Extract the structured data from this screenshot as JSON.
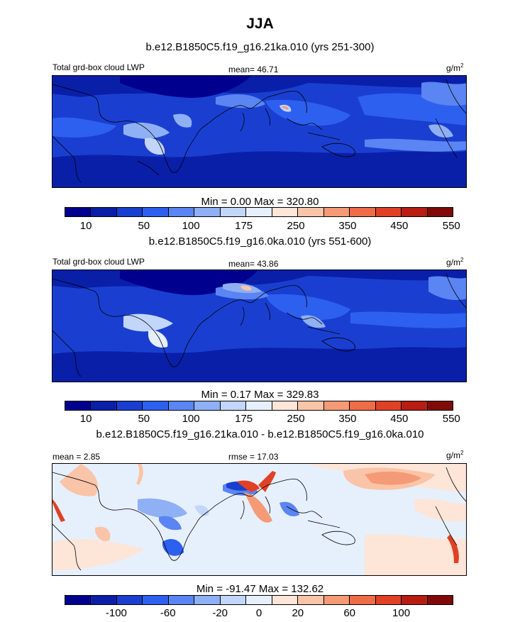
{
  "title": "JJA",
  "panels": [
    {
      "name": "b.e12.B1850C5.f19_g16.21ka.010 (yrs 251-300)",
      "left_label": "Total grd-box cloud LWP",
      "center_label": "mean=  46.71",
      "unit": "g/m",
      "unit_sup": "2",
      "minmax": "Min =   0.00 Max = 320.80",
      "colorbar_labels": [
        "10",
        "50",
        "100",
        "175",
        "250",
        "350",
        "450",
        "550"
      ]
    },
    {
      "name": "b.e12.B1850C5.f19_g16.0ka.010 (yrs 551-600)",
      "left_label": "Total grd-box cloud LWP",
      "center_label": "mean=  43.86",
      "unit": "g/m",
      "unit_sup": "2",
      "minmax": "Min =   0.17 Max = 329.83",
      "colorbar_labels": [
        "10",
        "50",
        "100",
        "175",
        "250",
        "350",
        "450",
        "550"
      ]
    },
    {
      "name": "b.e12.B1850C5.f19_g16.21ka.010 - b.e12.B1850C5.f19_g16.0ka.010",
      "left_label": "mean =   2.85",
      "center_label": "rmse =  17.03",
      "unit": "g/m",
      "unit_sup": "2",
      "minmax": "Min = -91.47 Max = 132.62",
      "colorbar_labels": [
        "-100",
        "-60",
        "-20",
        "0",
        "20",
        "60",
        "100"
      ]
    }
  ],
  "colors": {
    "scale": [
      "#00008f",
      "#0a1fa8",
      "#1a3fd0",
      "#2e60ef",
      "#5a85f2",
      "#8fb0f5",
      "#c2d6fa",
      "#e6f0fd",
      "#fde5d8",
      "#fac4a8",
      "#f59a76",
      "#ee6d48",
      "#e04125",
      "#b81c12",
      "#800a08"
    ],
    "diff_scale": [
      "#00008f",
      "#0a1fa8",
      "#1a3fd0",
      "#2e60ef",
      "#5a85f2",
      "#8fb0f5",
      "#c2d6fa",
      "#e6f0fd",
      "#fde5d8",
      "#fac4a8",
      "#f59a76",
      "#ee6d48",
      "#e04125",
      "#b81c12",
      "#800a08"
    ]
  }
}
